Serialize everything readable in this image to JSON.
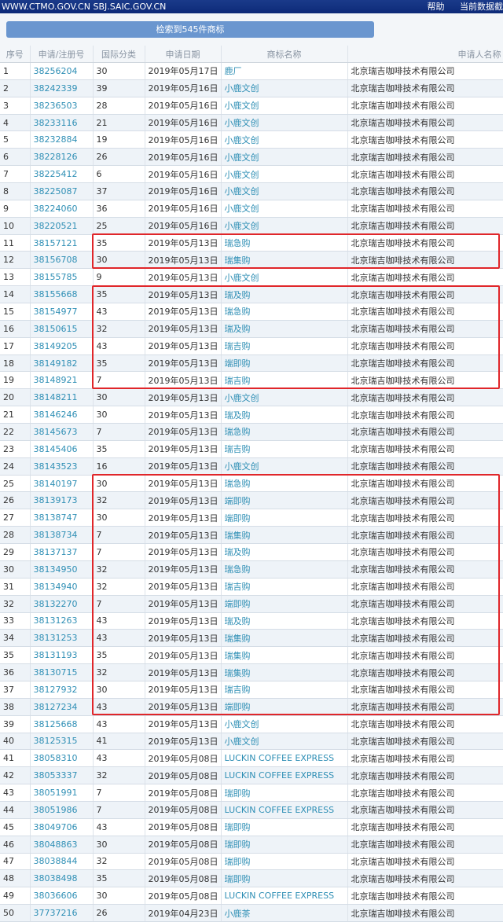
{
  "topbar": {
    "site": "WWW.CTMO.GOV.CN SBJ.SAIC.GOV.CN",
    "help": "帮助",
    "current_data": "当前数据截"
  },
  "search_result": "检索到545件商标",
  "columns": [
    "序号",
    "申请/注册号",
    "国际分类",
    "申请日期",
    "商标名称",
    "申请人名称"
  ],
  "applicant": "北京瑞吉咖啡技术有限公司",
  "highlight_color": "#e0262a",
  "highlighted_row_ranges": [
    [
      11,
      12
    ],
    [
      14,
      19
    ],
    [
      25,
      38
    ]
  ],
  "rows": [
    {
      "no": "1",
      "reg": "38256204",
      "cls": "30",
      "date": "2019年05月17日",
      "name": "鹿厂"
    },
    {
      "no": "2",
      "reg": "38242339",
      "cls": "39",
      "date": "2019年05月16日",
      "name": "小鹿文创"
    },
    {
      "no": "3",
      "reg": "38236503",
      "cls": "28",
      "date": "2019年05月16日",
      "name": "小鹿文创"
    },
    {
      "no": "4",
      "reg": "38233116",
      "cls": "21",
      "date": "2019年05月16日",
      "name": "小鹿文创"
    },
    {
      "no": "5",
      "reg": "38232884",
      "cls": "19",
      "date": "2019年05月16日",
      "name": "小鹿文创"
    },
    {
      "no": "6",
      "reg": "38228126",
      "cls": "26",
      "date": "2019年05月16日",
      "name": "小鹿文创"
    },
    {
      "no": "7",
      "reg": "38225412",
      "cls": "6",
      "date": "2019年05月16日",
      "name": "小鹿文创"
    },
    {
      "no": "8",
      "reg": "38225087",
      "cls": "37",
      "date": "2019年05月16日",
      "name": "小鹿文创"
    },
    {
      "no": "9",
      "reg": "38224060",
      "cls": "36",
      "date": "2019年05月16日",
      "name": "小鹿文创"
    },
    {
      "no": "10",
      "reg": "38220521",
      "cls": "25",
      "date": "2019年05月16日",
      "name": "小鹿文创"
    },
    {
      "no": "11",
      "reg": "38157121",
      "cls": "35",
      "date": "2019年05月13日",
      "name": "瑞急购"
    },
    {
      "no": "12",
      "reg": "38156708",
      "cls": "30",
      "date": "2019年05月13日",
      "name": "瑞集购"
    },
    {
      "no": "13",
      "reg": "38155785",
      "cls": "9",
      "date": "2019年05月13日",
      "name": "小鹿文创"
    },
    {
      "no": "14",
      "reg": "38155668",
      "cls": "35",
      "date": "2019年05月13日",
      "name": "瑞及购"
    },
    {
      "no": "15",
      "reg": "38154977",
      "cls": "43",
      "date": "2019年05月13日",
      "name": "瑞急购"
    },
    {
      "no": "16",
      "reg": "38150615",
      "cls": "32",
      "date": "2019年05月13日",
      "name": "瑞及购"
    },
    {
      "no": "17",
      "reg": "38149205",
      "cls": "43",
      "date": "2019年05月13日",
      "name": "瑞吉购"
    },
    {
      "no": "18",
      "reg": "38149182",
      "cls": "35",
      "date": "2019年05月13日",
      "name": "端即购"
    },
    {
      "no": "19",
      "reg": "38148921",
      "cls": "7",
      "date": "2019年05月13日",
      "name": "瑞吉购"
    },
    {
      "no": "20",
      "reg": "38148211",
      "cls": "30",
      "date": "2019年05月13日",
      "name": "小鹿文创"
    },
    {
      "no": "21",
      "reg": "38146246",
      "cls": "30",
      "date": "2019年05月13日",
      "name": "瑞及购"
    },
    {
      "no": "22",
      "reg": "38145673",
      "cls": "7",
      "date": "2019年05月13日",
      "name": "瑞急购"
    },
    {
      "no": "23",
      "reg": "38145406",
      "cls": "35",
      "date": "2019年05月13日",
      "name": "瑞吉购"
    },
    {
      "no": "24",
      "reg": "38143523",
      "cls": "16",
      "date": "2019年05月13日",
      "name": "小鹿文创"
    },
    {
      "no": "25",
      "reg": "38140197",
      "cls": "30",
      "date": "2019年05月13日",
      "name": "瑞急购"
    },
    {
      "no": "26",
      "reg": "38139173",
      "cls": "32",
      "date": "2019年05月13日",
      "name": "端即购"
    },
    {
      "no": "27",
      "reg": "38138747",
      "cls": "30",
      "date": "2019年05月13日",
      "name": "端即购"
    },
    {
      "no": "28",
      "reg": "38138734",
      "cls": "7",
      "date": "2019年05月13日",
      "name": "瑞集购"
    },
    {
      "no": "29",
      "reg": "38137137",
      "cls": "7",
      "date": "2019年05月13日",
      "name": "瑞及购"
    },
    {
      "no": "30",
      "reg": "38134950",
      "cls": "32",
      "date": "2019年05月13日",
      "name": "瑞急购"
    },
    {
      "no": "31",
      "reg": "38134940",
      "cls": "32",
      "date": "2019年05月13日",
      "name": "瑞吉购"
    },
    {
      "no": "32",
      "reg": "38132270",
      "cls": "7",
      "date": "2019年05月13日",
      "name": "端即购"
    },
    {
      "no": "33",
      "reg": "38131263",
      "cls": "43",
      "date": "2019年05月13日",
      "name": "瑞及购"
    },
    {
      "no": "34",
      "reg": "38131253",
      "cls": "43",
      "date": "2019年05月13日",
      "name": "瑞集购"
    },
    {
      "no": "35",
      "reg": "38131193",
      "cls": "35",
      "date": "2019年05月13日",
      "name": "瑞集购"
    },
    {
      "no": "36",
      "reg": "38130715",
      "cls": "32",
      "date": "2019年05月13日",
      "name": "瑞集购"
    },
    {
      "no": "37",
      "reg": "38127932",
      "cls": "30",
      "date": "2019年05月13日",
      "name": "瑞吉购"
    },
    {
      "no": "38",
      "reg": "38127234",
      "cls": "43",
      "date": "2019年05月13日",
      "name": "端即购"
    },
    {
      "no": "39",
      "reg": "38125668",
      "cls": "43",
      "date": "2019年05月13日",
      "name": "小鹿文创"
    },
    {
      "no": "40",
      "reg": "38125315",
      "cls": "41",
      "date": "2019年05月13日",
      "name": "小鹿文创"
    },
    {
      "no": "41",
      "reg": "38058310",
      "cls": "43",
      "date": "2019年05月08日",
      "name": "LUCKIN COFFEE EXPRESS"
    },
    {
      "no": "42",
      "reg": "38053337",
      "cls": "32",
      "date": "2019年05月08日",
      "name": "LUCKIN COFFEE EXPRESS"
    },
    {
      "no": "43",
      "reg": "38051991",
      "cls": "7",
      "date": "2019年05月08日",
      "name": "瑞即购"
    },
    {
      "no": "44",
      "reg": "38051986",
      "cls": "7",
      "date": "2019年05月08日",
      "name": "LUCKIN COFFEE EXPRESS"
    },
    {
      "no": "45",
      "reg": "38049706",
      "cls": "43",
      "date": "2019年05月08日",
      "name": "瑞即购"
    },
    {
      "no": "46",
      "reg": "38048863",
      "cls": "30",
      "date": "2019年05月08日",
      "name": "瑞即购"
    },
    {
      "no": "47",
      "reg": "38038844",
      "cls": "32",
      "date": "2019年05月08日",
      "name": "瑞即购"
    },
    {
      "no": "48",
      "reg": "38038498",
      "cls": "35",
      "date": "2019年05月08日",
      "name": "瑞即购"
    },
    {
      "no": "49",
      "reg": "38036606",
      "cls": "30",
      "date": "2019年05月08日",
      "name": "LUCKIN COFFEE EXPRESS"
    },
    {
      "no": "50",
      "reg": "37737216",
      "cls": "26",
      "date": "2019年04月23日",
      "name": "小鹿茶"
    }
  ]
}
